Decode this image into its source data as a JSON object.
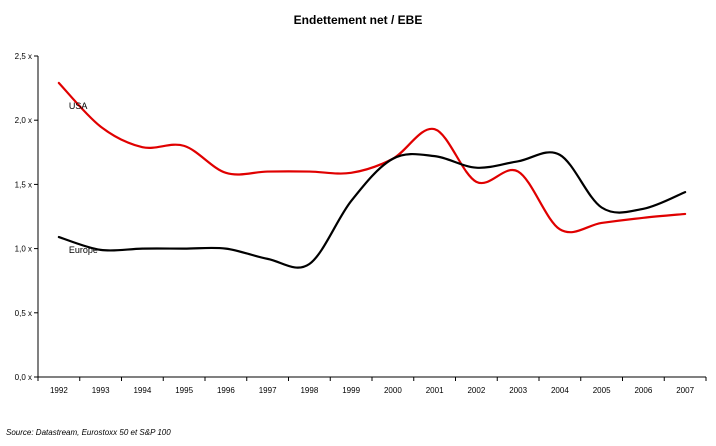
{
  "chart_data": {
    "type": "line",
    "title": "Endettement net / EBE",
    "xlabel": "",
    "ylabel": "",
    "x": [
      "1992",
      "1993",
      "1994",
      "1995",
      "1996",
      "1997",
      "1998",
      "1999",
      "2000",
      "2001",
      "2002",
      "2003",
      "2004",
      "2005",
      "2006",
      "2007"
    ],
    "ylim": [
      0,
      2.5
    ],
    "yticks": [
      {
        "value": 0.0,
        "label": "0,0 x"
      },
      {
        "value": 0.5,
        "label": "0,5 x"
      },
      {
        "value": 1.0,
        "label": "1,0 x"
      },
      {
        "value": 1.5,
        "label": "1,5 x"
      },
      {
        "value": 2.0,
        "label": "2,0 x"
      },
      {
        "value": 2.5,
        "label": "2,5 x"
      }
    ],
    "grid": false,
    "legend": "none",
    "series": [
      {
        "name": "USA",
        "color": "#e00000",
        "values": [
          2.29,
          1.95,
          1.79,
          1.8,
          1.59,
          1.6,
          1.6,
          1.59,
          1.7,
          1.93,
          1.52,
          1.6,
          1.15,
          1.2,
          1.24,
          1.27
        ]
      },
      {
        "name": "Europe",
        "color": "#000000",
        "values": [
          1.09,
          0.99,
          1.0,
          1.0,
          1.0,
          0.92,
          0.88,
          1.37,
          1.7,
          1.72,
          1.63,
          1.68,
          1.73,
          1.32,
          1.31,
          1.44
        ]
      }
    ]
  },
  "source": "Source: Datastream, Eurostoxx 50 et S&P 100"
}
